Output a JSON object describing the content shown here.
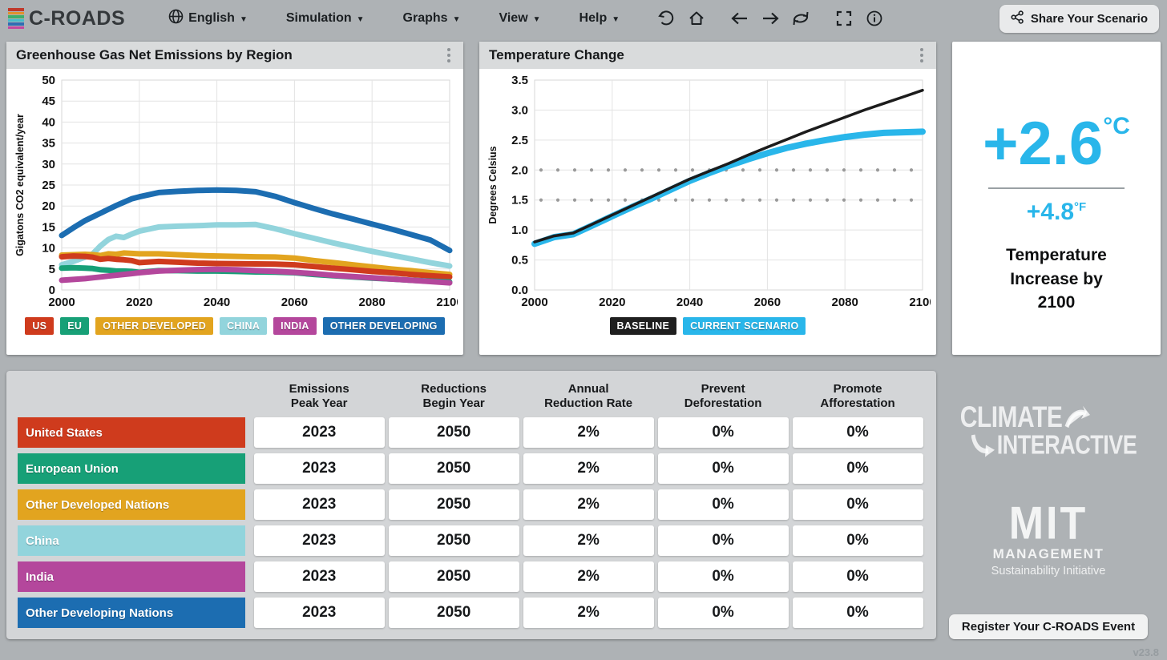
{
  "navbar": {
    "logo_text": "C-ROADS",
    "logo_stripe_colors": [
      "#c0392b",
      "#e0912c",
      "#3fae6a",
      "#45bccc",
      "#2e6db4",
      "#c2479f"
    ],
    "menus": [
      {
        "label": "English",
        "icon": "globe"
      },
      {
        "label": "Simulation"
      },
      {
        "label": "Graphs"
      },
      {
        "label": "View"
      },
      {
        "label": "Help"
      }
    ],
    "icon_buttons": [
      "undo-icon",
      "home-icon",
      "back-icon",
      "forward-icon",
      "reload-icon",
      "fullscreen-icon",
      "info-icon"
    ],
    "share_button": "Share Your Scenario"
  },
  "emissions_card": {
    "title": "Greenhouse Gas Net Emissions by Region",
    "legend": [
      {
        "label": "US",
        "color": "#cf3b1d"
      },
      {
        "label": "EU",
        "color": "#17a077"
      },
      {
        "label": "OTHER DEVELOPED",
        "color": "#e2a41f"
      },
      {
        "label": "CHINA",
        "color": "#92d4dc"
      },
      {
        "label": "INDIA",
        "color": "#b4479c"
      },
      {
        "label": "OTHER DEVELOPING",
        "color": "#1c6db1"
      }
    ]
  },
  "temperature_card": {
    "title": "Temperature Change",
    "legend": [
      {
        "label": "BASELINE",
        "color": "#1f1f1f"
      },
      {
        "label": "CURRENT SCENARIO",
        "color": "#29b6ea"
      }
    ]
  },
  "summary_card": {
    "celsius_value": "+2.6",
    "celsius_unit": "°C",
    "fahrenheit_value": "+4.8",
    "fahrenheit_unit": "°F",
    "caption": "Temperature Increase by 2100"
  },
  "table": {
    "headers": [
      {
        "line1": "Emissions",
        "line2": "Peak Year"
      },
      {
        "line1": "Reductions",
        "line2": "Begin Year"
      },
      {
        "line1": "Annual",
        "line2": "Reduction Rate"
      },
      {
        "line1": "Prevent",
        "line2": "Deforestation"
      },
      {
        "line1": "Promote",
        "line2": "Afforestation"
      }
    ],
    "rows": [
      {
        "label": "United States",
        "color": "#cf3b1d",
        "values": [
          "2023",
          "2050",
          "2%",
          "0%",
          "0%"
        ]
      },
      {
        "label": "European Union",
        "color": "#17a077",
        "values": [
          "2023",
          "2050",
          "2%",
          "0%",
          "0%"
        ]
      },
      {
        "label": "Other Developed Nations",
        "color": "#e2a41f",
        "values": [
          "2023",
          "2050",
          "2%",
          "0%",
          "0%"
        ]
      },
      {
        "label": "China",
        "color": "#92d4dc",
        "values": [
          "2023",
          "2050",
          "2%",
          "0%",
          "0%"
        ]
      },
      {
        "label": "India",
        "color": "#b4479c",
        "values": [
          "2023",
          "2050",
          "2%",
          "0%",
          "0%"
        ]
      },
      {
        "label": "Other Developing Nations",
        "color": "#1c6db1",
        "values": [
          "2023",
          "2050",
          "2%",
          "0%",
          "0%"
        ]
      }
    ]
  },
  "footer": {
    "climate_interactive_line1": "CLIMATE",
    "climate_interactive_line2": "INTERACTIVE",
    "mit_word": "MIT",
    "mit_management": "MANAGEMENT",
    "mit_subtitle": "Sustainability Initiative",
    "register_button": "Register Your C-ROADS Event",
    "version": "v23.8"
  },
  "chart_data": [
    {
      "type": "line",
      "title": "Greenhouse Gas Net Emissions by Region",
      "ylabel": "Gigatons CO2 equivalent/year",
      "xlabel": "",
      "ylim": [
        0,
        50
      ],
      "ytick_step": 5,
      "y_decimals": 0,
      "xlim": [
        2000,
        2100
      ],
      "xticks": [
        2000,
        2020,
        2040,
        2060,
        2080,
        2100
      ],
      "grid": true,
      "legend_position": "bottom",
      "x": [
        2000,
        2003,
        2006,
        2008,
        2010,
        2012,
        2014,
        2016,
        2018,
        2020,
        2025,
        2030,
        2035,
        2040,
        2045,
        2050,
        2055,
        2060,
        2065,
        2070,
        2075,
        2080,
        2085,
        2090,
        2095,
        2100
      ],
      "series": [
        {
          "name": "OTHER DEVELOPING",
          "color": "#1c6db1",
          "width": 7,
          "values": [
            13.0,
            14.8,
            16.5,
            17.4,
            18.3,
            19.2,
            20.1,
            20.9,
            21.7,
            22.2,
            23.2,
            23.5,
            23.7,
            23.8,
            23.7,
            23.4,
            22.3,
            20.8,
            19.4,
            18.1,
            16.9,
            15.7,
            14.5,
            13.2,
            11.9,
            9.4
          ]
        },
        {
          "name": "CHINA",
          "color": "#92d4dc",
          "width": 7,
          "values": [
            6.0,
            6.8,
            7.8,
            8.6,
            10.5,
            12.0,
            12.8,
            12.5,
            13.3,
            14.0,
            15.0,
            15.2,
            15.3,
            15.5,
            15.5,
            15.6,
            14.6,
            13.4,
            12.3,
            11.2,
            10.2,
            9.2,
            8.3,
            7.4,
            6.5,
            5.7
          ]
        },
        {
          "name": "OTHER DEVELOPED",
          "color": "#e2a41f",
          "width": 7,
          "values": [
            8.3,
            8.4,
            8.5,
            8.4,
            8.2,
            8.6,
            8.5,
            8.8,
            8.7,
            8.6,
            8.6,
            8.4,
            8.2,
            8.1,
            8.0,
            7.9,
            7.85,
            7.6,
            7.0,
            6.5,
            6.0,
            5.5,
            5.0,
            4.6,
            4.1,
            3.7
          ]
        },
        {
          "name": "US",
          "color": "#cf3b1d",
          "width": 7,
          "values": [
            7.9,
            8.1,
            8.0,
            7.8,
            7.3,
            7.5,
            7.3,
            7.2,
            7.0,
            6.5,
            6.8,
            6.6,
            6.4,
            6.3,
            6.25,
            6.2,
            6.15,
            6.0,
            5.6,
            5.2,
            4.8,
            4.4,
            4.1,
            3.7,
            3.4,
            3.1
          ]
        },
        {
          "name": "EU",
          "color": "#17a077",
          "width": 7,
          "values": [
            5.2,
            5.3,
            5.2,
            5.1,
            4.8,
            4.7,
            4.5,
            4.5,
            4.4,
            4.2,
            4.6,
            4.6,
            4.5,
            4.5,
            4.4,
            4.3,
            4.25,
            4.1,
            3.7,
            3.4,
            3.1,
            2.8,
            2.6,
            2.3,
            2.1,
            1.9
          ]
        },
        {
          "name": "INDIA",
          "color": "#b4479c",
          "width": 7,
          "values": [
            2.3,
            2.5,
            2.7,
            2.9,
            3.1,
            3.3,
            3.5,
            3.7,
            3.9,
            4.1,
            4.5,
            4.7,
            4.85,
            4.9,
            4.8,
            4.6,
            4.45,
            4.2,
            3.9,
            3.5,
            3.2,
            2.9,
            2.6,
            2.3,
            2.0,
            1.7
          ]
        }
      ]
    },
    {
      "type": "line",
      "title": "Temperature Change",
      "ylabel": "Degrees Celsius",
      "xlabel": "",
      "ylim": [
        0,
        3.5
      ],
      "ytick_step": 0.5,
      "y_decimals": 1,
      "xlim": [
        2000,
        2100
      ],
      "xticks": [
        2000,
        2020,
        2040,
        2060,
        2080,
        2100
      ],
      "grid": true,
      "reference_dotted_lines": [
        1.5,
        2.0
      ],
      "legend_position": "bottom",
      "x": [
        2000,
        2005,
        2008,
        2010,
        2015,
        2020,
        2025,
        2030,
        2035,
        2040,
        2045,
        2050,
        2055,
        2060,
        2065,
        2070,
        2075,
        2080,
        2085,
        2090,
        2095,
        2100
      ],
      "series": [
        {
          "name": "CURRENT SCENARIO",
          "color": "#29b6ea",
          "width": 8,
          "values": [
            0.77,
            0.88,
            0.91,
            0.93,
            1.08,
            1.23,
            1.38,
            1.52,
            1.67,
            1.82,
            1.95,
            2.07,
            2.18,
            2.28,
            2.37,
            2.44,
            2.5,
            2.55,
            2.59,
            2.62,
            2.63,
            2.64
          ]
        },
        {
          "name": "BASELINE",
          "color": "#1c1c1c",
          "width": 3.5,
          "values": [
            0.8,
            0.9,
            0.93,
            0.95,
            1.1,
            1.25,
            1.4,
            1.55,
            1.7,
            1.85,
            1.98,
            2.11,
            2.25,
            2.38,
            2.51,
            2.64,
            2.76,
            2.88,
            3.0,
            3.11,
            3.22,
            3.33
          ]
        }
      ]
    }
  ]
}
